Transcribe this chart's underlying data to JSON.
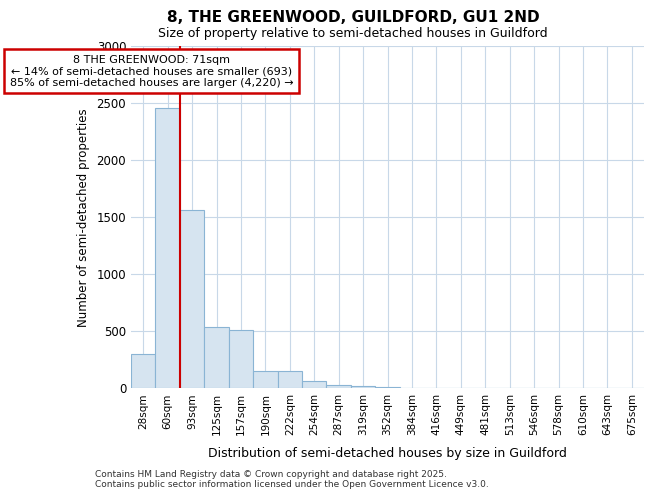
{
  "title_line1": "8, THE GREENWOOD, GUILDFORD, GU1 2ND",
  "title_line2": "Size of property relative to semi-detached houses in Guildford",
  "xlabel": "Distribution of semi-detached houses by size in Guildford",
  "ylabel": "Number of semi-detached properties",
  "categories": [
    "28sqm",
    "60sqm",
    "93sqm",
    "125sqm",
    "157sqm",
    "190sqm",
    "222sqm",
    "254sqm",
    "287sqm",
    "319sqm",
    "352sqm",
    "384sqm",
    "416sqm",
    "449sqm",
    "481sqm",
    "513sqm",
    "546sqm",
    "578sqm",
    "610sqm",
    "643sqm",
    "675sqm"
  ],
  "values": [
    300,
    2450,
    1560,
    530,
    510,
    150,
    150,
    60,
    30,
    15,
    5,
    3,
    1,
    1,
    0,
    0,
    0,
    0,
    0,
    0,
    0
  ],
  "bar_color": "#d6e4f0",
  "bar_edge_color": "#8ab4d4",
  "annotation_text": "8 THE GREENWOOD: 71sqm\n← 14% of semi-detached houses are smaller (693)\n85% of semi-detached houses are larger (4,220) →",
  "vline_x": 1.5,
  "vline_color": "#cc0000",
  "ylim": [
    0,
    3000
  ],
  "yticks": [
    0,
    500,
    1000,
    1500,
    2000,
    2500,
    3000
  ],
  "bg_color": "#ffffff",
  "grid_color": "#c8d8e8",
  "footer_text": "Contains HM Land Registry data © Crown copyright and database right 2025.\nContains public sector information licensed under the Open Government Licence v3.0."
}
